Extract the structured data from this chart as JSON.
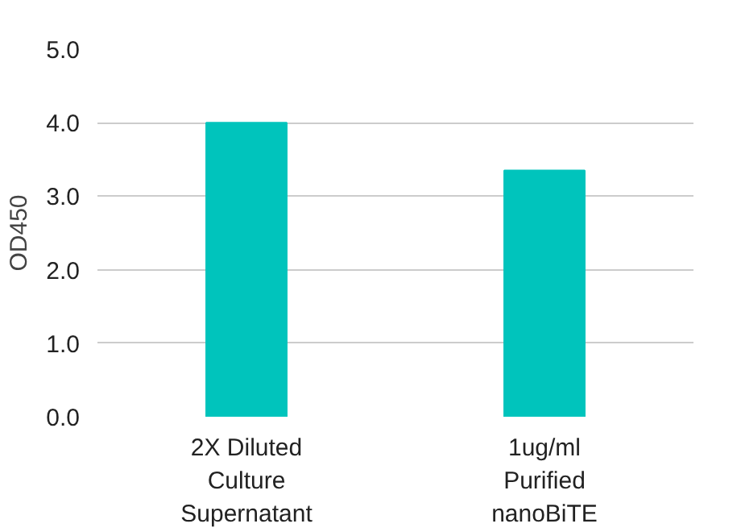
{
  "chart_data": {
    "type": "bar",
    "ylabel": "OD450",
    "categories": [
      "2X Diluted\nCulture\nSupernatant",
      "1ug/ml\nPurified\nnanoBiTE"
    ],
    "values": [
      4.0,
      3.35
    ],
    "color": "#00c4bc",
    "ylim": [
      0,
      5.0
    ],
    "yticks": [
      {
        "value": 0,
        "label": "0.0"
      },
      {
        "value": 1,
        "label": "1.0"
      },
      {
        "value": 2,
        "label": "2.0"
      },
      {
        "value": 3,
        "label": "3.0"
      },
      {
        "value": 4,
        "label": "4.0"
      },
      {
        "value": 5,
        "label": "5.0"
      }
    ],
    "grid": "y"
  }
}
